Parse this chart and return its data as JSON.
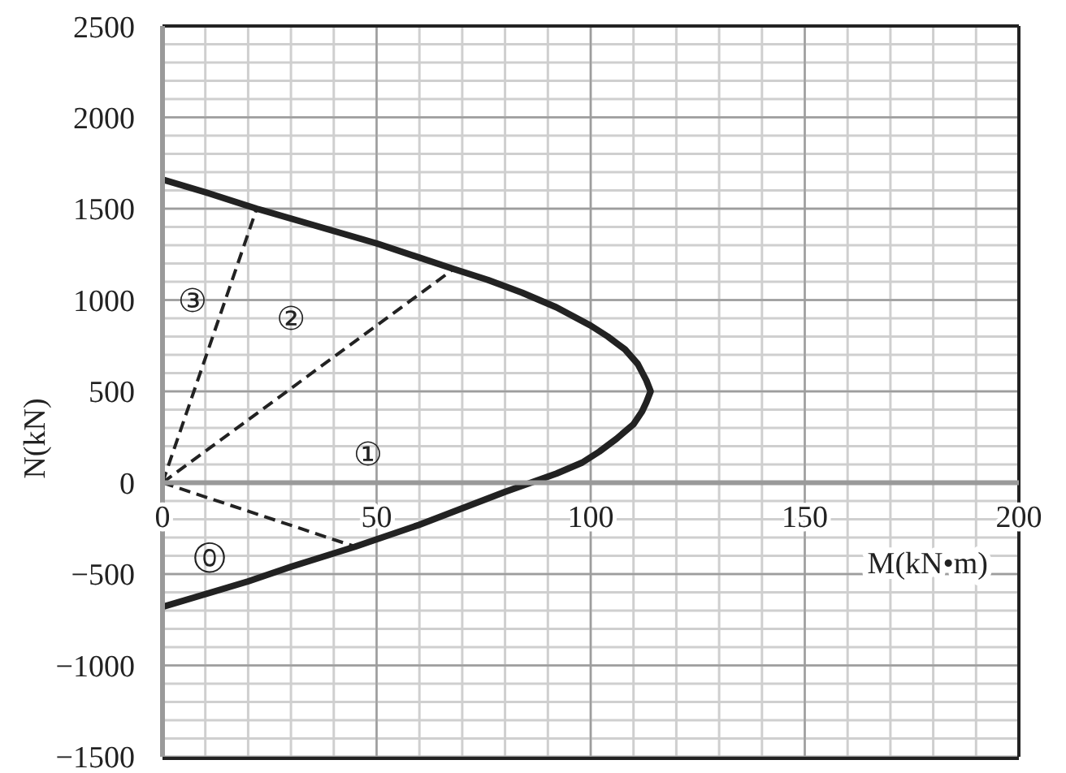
{
  "chart_data": {
    "type": "line",
    "xlabel": "M(kN•m)",
    "ylabel": "N(kN)",
    "xlim": [
      0,
      200
    ],
    "ylim": [
      -1500,
      2500
    ],
    "xticks": [
      0,
      {
        "value": 10,
        "label": null
      },
      {
        "value": 20,
        "label": null
      },
      {
        "value": 30,
        "label": null
      },
      {
        "value": 40,
        "label": null
      },
      50,
      {
        "value": 60,
        "label": null
      },
      {
        "value": 70,
        "label": null
      },
      {
        "value": 80,
        "label": null
      },
      {
        "value": 90,
        "label": null
      },
      100,
      {
        "value": 110,
        "label": null
      },
      {
        "value": 120,
        "label": null
      },
      {
        "value": 130,
        "label": null
      },
      {
        "value": 140,
        "label": null
      },
      150,
      {
        "value": 160,
        "label": null
      },
      {
        "value": 170,
        "label": null
      },
      {
        "value": 180,
        "label": null
      },
      {
        "value": 190,
        "label": null
      },
      200
    ],
    "yticks": [
      -1500,
      {
        "value": -1400,
        "label": null
      },
      {
        "value": -1300,
        "label": null
      },
      {
        "value": -1200,
        "label": null
      },
      {
        "value": -1100,
        "label": null
      },
      -1000,
      {
        "value": -900,
        "label": null
      },
      {
        "value": -800,
        "label": null
      },
      {
        "value": -700,
        "label": null
      },
      {
        "value": -600,
        "label": null
      },
      -500,
      {
        "value": -400,
        "label": null
      },
      {
        "value": -300,
        "label": null
      },
      {
        "value": -200,
        "label": null
      },
      {
        "value": -100,
        "label": null
      },
      0,
      {
        "value": 100,
        "label": null
      },
      {
        "value": 200,
        "label": null
      },
      {
        "value": 300,
        "label": null
      },
      {
        "value": 400,
        "label": null
      },
      500,
      {
        "value": 600,
        "label": null
      },
      {
        "value": 700,
        "label": null
      },
      {
        "value": 800,
        "label": null
      },
      {
        "value": 900,
        "label": null
      },
      1000,
      {
        "value": 1100,
        "label": null
      },
      {
        "value": 1200,
        "label": null
      },
      {
        "value": 1300,
        "label": null
      },
      {
        "value": 1400,
        "label": null
      },
      1500,
      {
        "value": 1600,
        "label": null
      },
      {
        "value": 1700,
        "label": null
      },
      {
        "value": 1800,
        "label": null
      },
      {
        "value": 1900,
        "label": null
      },
      2000,
      {
        "value": 2100,
        "label": null
      },
      {
        "value": 2200,
        "label": null
      },
      {
        "value": 2300,
        "label": null
      },
      {
        "value": 2400,
        "label": null
      },
      2500
    ],
    "grid": true,
    "series": [
      {
        "color": "#222222",
        "line_style": "solid",
        "x": [
          0,
          10,
          22,
          50,
          68,
          76,
          84,
          92,
          100,
          104,
          108,
          111,
          113,
          114,
          113,
          112,
          110,
          106,
          102,
          98,
          92,
          86,
          80,
          70,
          60,
          45,
          30,
          20,
          10,
          0
        ],
        "values": [
          1660,
          1590,
          1500,
          1310,
          1170,
          1110,
          1040,
          960,
          860,
          800,
          730,
          650,
          560,
          500,
          440,
          390,
          320,
          240,
          170,
          110,
          50,
          0,
          -50,
          -140,
          -230,
          -350,
          -460,
          -540,
          -610,
          -680
        ]
      },
      {
        "color": "#222222",
        "line_style": "dashed",
        "x": [
          0,
          45
        ],
        "values": [
          0,
          -350
        ]
      },
      {
        "color": "#222222",
        "line_style": "dashed",
        "x": [
          0,
          68
        ],
        "values": [
          0,
          1170
        ]
      },
      {
        "color": "#222222",
        "line_style": "dashed",
        "x": [
          0,
          22
        ],
        "values": [
          0,
          1500
        ]
      }
    ],
    "annotations": [
      "⓪",
      "①",
      "②",
      "③"
    ]
  }
}
